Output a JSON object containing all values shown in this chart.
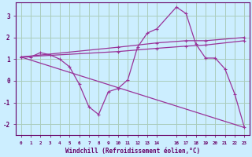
{
  "xlabel": "Windchill (Refroidissement éolien,°C)",
  "background_color": "#cceeff",
  "grid_color": "#aaccbb",
  "line_color": "#993399",
  "xlim": [
    -0.5,
    23.5
  ],
  "ylim": [
    -2.5,
    3.6
  ],
  "xticks": [
    0,
    1,
    2,
    3,
    4,
    5,
    6,
    7,
    8,
    9,
    10,
    11,
    12,
    13,
    14,
    16,
    17,
    18,
    19,
    20,
    21,
    22,
    23
  ],
  "yticks": [
    -2,
    -1,
    0,
    1,
    2,
    3
  ],
  "line1_x": [
    0,
    1,
    2,
    3,
    4,
    5,
    6,
    7,
    8,
    9,
    10,
    11,
    12,
    13,
    14,
    16,
    17,
    18,
    19,
    20,
    21,
    22,
    23
  ],
  "line1_y": [
    1.1,
    1.1,
    1.3,
    1.2,
    1.0,
    0.65,
    -0.15,
    -1.2,
    -1.55,
    -0.5,
    -0.35,
    0.05,
    1.55,
    2.2,
    2.4,
    3.4,
    3.1,
    1.7,
    1.05,
    1.05,
    0.55,
    -0.6,
    -2.15
  ],
  "line2_x": [
    0,
    10,
    14,
    17,
    19,
    23
  ],
  "line2_y": [
    1.1,
    1.55,
    1.75,
    1.85,
    1.85,
    2.0
  ],
  "line3_x": [
    0,
    10,
    14,
    17,
    19,
    23
  ],
  "line3_y": [
    1.1,
    1.35,
    1.5,
    1.6,
    1.65,
    1.85
  ],
  "line4_x": [
    0,
    23
  ],
  "line4_y": [
    1.1,
    -2.15
  ]
}
